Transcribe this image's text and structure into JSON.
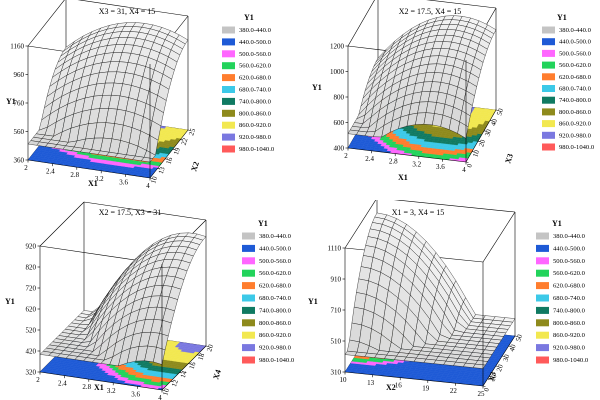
{
  "legend": {
    "title": "Y1",
    "entries": [
      {
        "label": "380.0-440.0",
        "color": "#c4c4c4"
      },
      {
        "label": "440.0-500.0",
        "color": "#1e5ad6"
      },
      {
        "label": "500.0-560.0",
        "color": "#ff66ff"
      },
      {
        "label": "560.0-620.0",
        "color": "#22d35b"
      },
      {
        "label": "620.0-680.0",
        "color": "#ff7d2e"
      },
      {
        "label": "680.0-740.0",
        "color": "#3cc9e8"
      },
      {
        "label": "740.0-800.0",
        "color": "#107a62"
      },
      {
        "label": "800.0-860.0",
        "color": "#8e8a1c"
      },
      {
        "label": "860.0-920.0",
        "color": "#f2e850"
      },
      {
        "label": "920.0-980.0",
        "color": "#7a78e0"
      },
      {
        "label": "980.0-1040.0",
        "color": "#ff5a5a"
      }
    ]
  },
  "chart_data": [
    {
      "type": "surface",
      "title": "X3 = 31, X4 = 15",
      "xlabel": "X1",
      "ylabel": "X2",
      "zlabel": "Y1",
      "xlim": [
        2,
        4
      ],
      "ylim": [
        10,
        25
      ],
      "zlim": [
        360,
        1160
      ],
      "xticks": [
        "2",
        "2.4",
        "2.8",
        "3.2",
        "3.6",
        "4"
      ],
      "yticks": [
        "10",
        "13",
        "16",
        "19",
        "22",
        "25"
      ],
      "zticks": [
        "360",
        "560",
        "760",
        "960",
        "1160"
      ],
      "surface": {
        "base": 580,
        "x_peak": 3.3,
        "x_curv": 200,
        "y_peak": 25,
        "y_curv": 240
      }
    },
    {
      "type": "surface",
      "title": "X2 = 17.5, X4 = 15",
      "xlabel": "X1",
      "ylabel": "X3",
      "zlabel": "Y1",
      "xlim": [
        2,
        4
      ],
      "ylim": [
        0,
        50
      ],
      "zlim": [
        400,
        1200
      ],
      "xticks": [
        "2",
        "2.4",
        "2.8",
        "3.2",
        "3.6",
        "4"
      ],
      "yticks": [
        "0",
        "10",
        "20",
        "30",
        "40",
        "50"
      ],
      "zticks": [
        "400",
        "600",
        "800",
        "1000",
        "1200"
      ],
      "surface": {
        "base": 530,
        "x_peak": 3.4,
        "x_curv": 280,
        "y_peak": 50,
        "y_curv": 150
      }
    },
    {
      "type": "surface",
      "title": "X2 = 17.5, X3 = 31",
      "xlabel": "X1",
      "ylabel": "X4",
      "zlabel": "Y1",
      "xlim": [
        2,
        4
      ],
      "ylim": [
        10,
        20
      ],
      "zlim": [
        320,
        920
      ],
      "xticks": [
        "2",
        "2.4",
        "2.8",
        "3.2",
        "3.6",
        "4"
      ],
      "yticks": [
        "10",
        "12",
        "14",
        "16",
        "18",
        "20"
      ],
      "zticks": [
        "320",
        "420",
        "520",
        "620",
        "720",
        "820",
        "920"
      ],
      "surface": {
        "base": 400,
        "x_peak": 3.8,
        "x_curv": 320,
        "y_peak": 20,
        "y_curv": 180
      }
    },
    {
      "type": "surface",
      "title": "X1 = 3, X4 = 15",
      "xlabel": "X2",
      "ylabel": "X3",
      "zlabel": "Y1",
      "xlim": [
        10,
        25
      ],
      "ylim": [
        0,
        50
      ],
      "zlim": [
        310,
        1110
      ],
      "xticks": [
        "10",
        "13",
        "16",
        "19",
        "22",
        "25"
      ],
      "yticks": [
        "0",
        "10",
        "20",
        "30",
        "40",
        "50"
      ],
      "zticks": [
        "310",
        "510",
        "710",
        "910",
        "1110"
      ],
      "surface": {
        "base": 560,
        "x_peak": 10,
        "x_curv": 400,
        "y_peak": 50,
        "y_curv": 250
      }
    }
  ]
}
